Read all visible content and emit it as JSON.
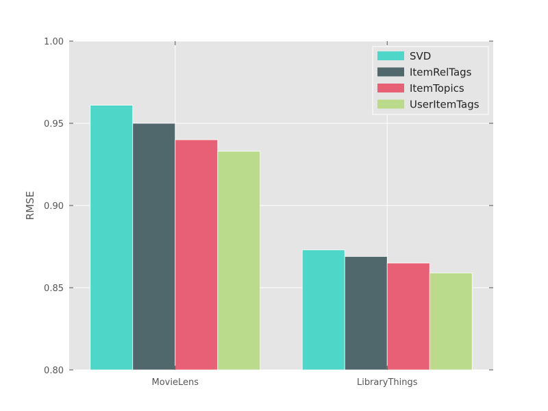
{
  "chart_data": {
    "type": "bar",
    "title": "",
    "xlabel": "",
    "ylabel": "RMSE",
    "categories": [
      "MovieLens",
      "LibraryThings"
    ],
    "ylim": [
      0.8,
      1.0
    ],
    "yticks": [
      "0.80",
      "0.85",
      "0.90",
      "0.95",
      "1.00"
    ],
    "grid": true,
    "legend_position": "top-right",
    "series": [
      {
        "name": "SVD",
        "color": "#4ED6C8",
        "values": [
          0.961,
          0.873
        ]
      },
      {
        "name": "ItemRelTags",
        "color": "#50676C",
        "values": [
          0.95,
          0.869
        ]
      },
      {
        "name": "ItemTopics",
        "color": "#E86076",
        "values": [
          0.94,
          0.865
        ]
      },
      {
        "name": "UserItemTags",
        "color": "#B9DB8B",
        "values": [
          0.933,
          0.859
        ]
      }
    ]
  }
}
